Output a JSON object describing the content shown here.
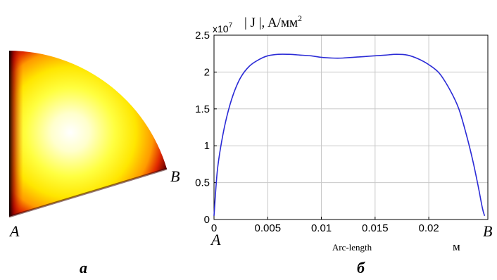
{
  "panel_a": {
    "label_A": "A",
    "label_B": "B",
    "caption": "а"
  },
  "panel_b": {
    "caption": "б",
    "point_A": "A",
    "point_B": "B",
    "x_unit": "м"
  },
  "chart_data": {
    "type": "line",
    "title": "| J |, A/мм",
    "title_superscript": "2",
    "y_exponent_base": "x10",
    "y_exponent_power": "7",
    "xlabel": "Arc-length",
    "ylabel": "",
    "xlim": [
      0,
      0.0255
    ],
    "ylim": [
      0,
      2.5
    ],
    "grid": true,
    "line_color": "#2b2bd6",
    "x_ticks": [
      0,
      0.005,
      0.01,
      0.015,
      0.02
    ],
    "x_tick_labels": [
      "0",
      "0.005",
      "0.01",
      "0.015",
      "0.02"
    ],
    "y_ticks": [
      0,
      0.5,
      1,
      1.5,
      2,
      2.5
    ],
    "y_tick_labels": [
      "0",
      "0.5",
      "1",
      "1.5",
      "2",
      "2.5"
    ],
    "series": [
      {
        "x": [
          0,
          0.0003,
          0.0007,
          0.0012,
          0.0018,
          0.0025,
          0.0033,
          0.0042,
          0.005,
          0.006,
          0.007,
          0.008,
          0.009,
          0.01,
          0.011,
          0.012,
          0.013,
          0.014,
          0.015,
          0.016,
          0.017,
          0.018,
          0.019,
          0.02,
          0.021,
          0.022,
          0.0228,
          0.0235,
          0.0241,
          0.0246,
          0.025,
          0.0252
        ],
        "values": [
          0.05,
          0.65,
          1.05,
          1.4,
          1.7,
          1.93,
          2.08,
          2.17,
          2.22,
          2.24,
          2.24,
          2.23,
          2.22,
          2.2,
          2.19,
          2.19,
          2.2,
          2.21,
          2.22,
          2.23,
          2.24,
          2.23,
          2.18,
          2.1,
          1.98,
          1.75,
          1.5,
          1.15,
          0.8,
          0.45,
          0.15,
          0.05
        ]
      }
    ]
  }
}
